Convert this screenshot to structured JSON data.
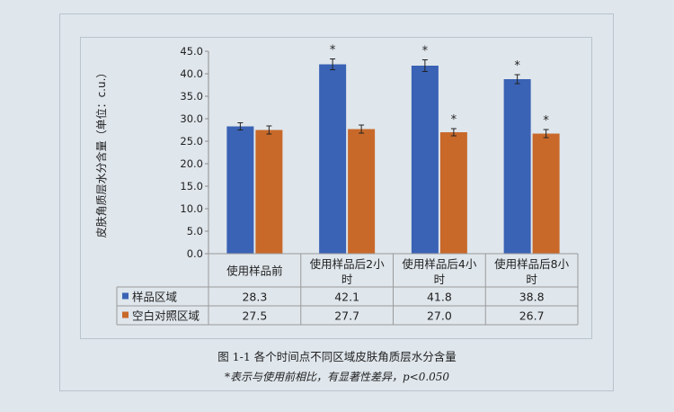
{
  "chart_data": {
    "type": "bar",
    "ylabel": "皮肤角质层水分含量（单位：c.u.）",
    "ylim": [
      0,
      45
    ],
    "yticks": [
      "0.0",
      "5.0",
      "10.0",
      "15.0",
      "20.0",
      "25.0",
      "30.0",
      "35.0",
      "40.0",
      "45.0"
    ],
    "categories": [
      [
        "使用样品前"
      ],
      [
        "使用样品后2小",
        "时"
      ],
      [
        "使用样品后4小",
        "时"
      ],
      [
        "使用样品后8小",
        "时"
      ]
    ],
    "series": [
      {
        "name": "样品区域",
        "color": "#3a62b5",
        "values": [
          28.3,
          42.1,
          41.8,
          38.8
        ],
        "labels": [
          "28.3",
          "42.1",
          "41.8",
          "38.8"
        ],
        "errors": [
          0.8,
          1.2,
          1.3,
          1.0
        ],
        "sig": [
          "",
          "*",
          "*",
          "*"
        ]
      },
      {
        "name": "空白对照区域",
        "color": "#c8692a",
        "values": [
          27.5,
          27.7,
          27.0,
          26.7
        ],
        "labels": [
          "27.5",
          "27.7",
          "27.0",
          "26.7"
        ],
        "errors": [
          0.9,
          0.9,
          0.8,
          0.9
        ],
        "sig": [
          "",
          "",
          "*",
          "*"
        ]
      }
    ],
    "grid": false,
    "legend": "data-table"
  },
  "caption": "图 1-1  各个时间点不同区域皮肤角质层水分含量",
  "note": "*表示与使用前相比，有显著性差异，p<0.050"
}
